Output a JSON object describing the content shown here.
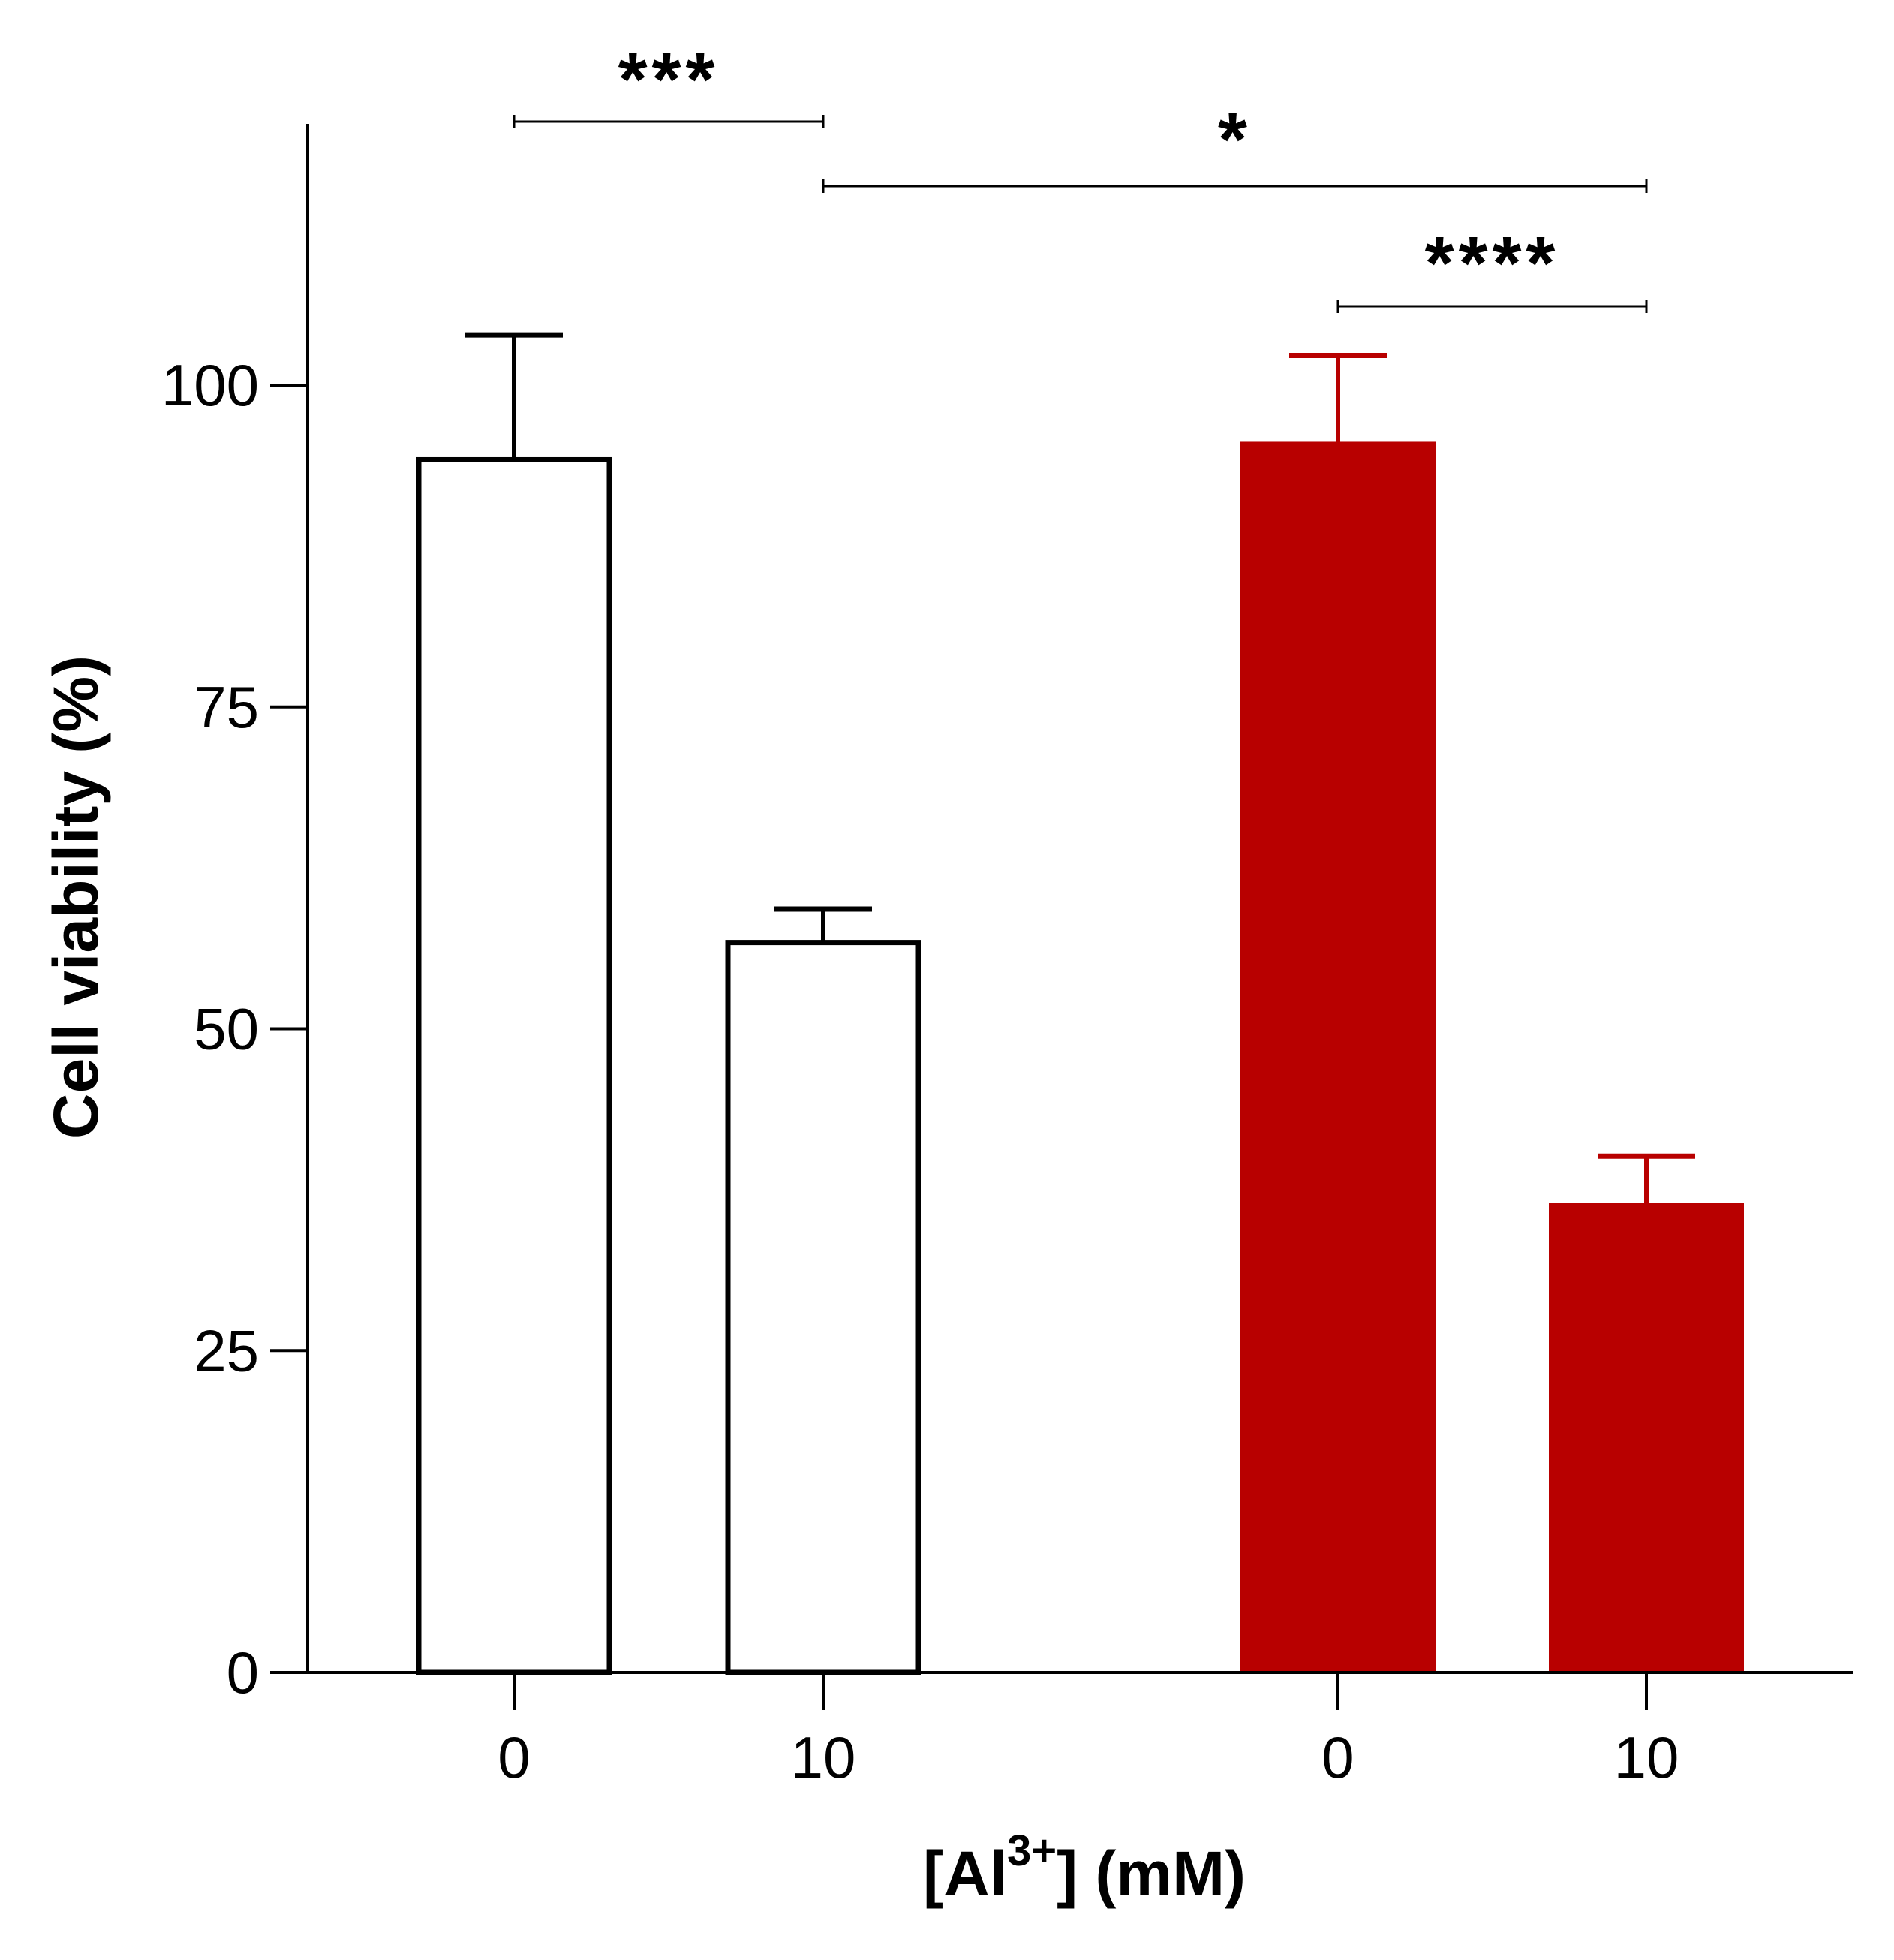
{
  "chart_data": {
    "type": "bar",
    "title": "",
    "ylabel": "Cell viability (%)",
    "xlabel_prefix": "[Al",
    "xlabel_superscript": "3+",
    "xlabel_suffix": "] (mM)",
    "ylim": [
      0,
      120
    ],
    "yticks": [
      0,
      25,
      50,
      75,
      100
    ],
    "categories": [
      "0",
      "10",
      "0",
      "10"
    ],
    "values": [
      94.2,
      56.7,
      95.6,
      36.5
    ],
    "errors": [
      9.7,
      2.6,
      6.7,
      3.6
    ],
    "bar_styles": [
      "outline",
      "outline",
      "filled",
      "filled"
    ],
    "colors": {
      "outline_stroke": "#000000",
      "outline_fill": "#ffffff",
      "filled": "#b80000",
      "filled_error": "#b80000"
    },
    "significance": [
      {
        "from": 0,
        "to": 1,
        "label": "***"
      },
      {
        "from": 1,
        "to": 3,
        "label": "*"
      },
      {
        "from": 2,
        "to": 3,
        "label": "****"
      }
    ]
  }
}
